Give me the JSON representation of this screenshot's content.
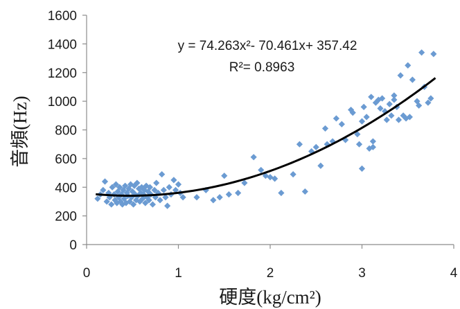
{
  "chart_data": {
    "type": "scatter",
    "xlabel": "硬度(kg/cm²)",
    "ylabel": "音頻(Hz)",
    "xlim": [
      0,
      4
    ],
    "ylim": [
      0,
      1600
    ],
    "x_ticks": [
      "0",
      "1",
      "2",
      "3",
      "4"
    ],
    "y_ticks": [
      "0",
      "200",
      "400",
      "600",
      "800",
      "1000",
      "1200",
      "1400",
      "1600"
    ],
    "grid": false,
    "legend": "none",
    "marker_color": "#6b9bd2",
    "trendline_color": "#000000",
    "annotations": {
      "equation": "y = 74.263x²- 70.461x+ 357.42",
      "r_squared": "R²= 0.8963"
    },
    "trendline": {
      "type": "polynomial",
      "coefficients": [
        74.263,
        -70.461,
        357.42
      ],
      "x_range": [
        0.1,
        3.8
      ]
    },
    "points": [
      [
        0.12,
        320
      ],
      [
        0.15,
        350
      ],
      [
        0.18,
        380
      ],
      [
        0.2,
        440
      ],
      [
        0.22,
        300
      ],
      [
        0.24,
        360
      ],
      [
        0.25,
        330
      ],
      [
        0.27,
        280
      ],
      [
        0.28,
        400
      ],
      [
        0.3,
        350
      ],
      [
        0.31,
        310
      ],
      [
        0.32,
        420
      ],
      [
        0.33,
        290
      ],
      [
        0.34,
        370
      ],
      [
        0.35,
        330
      ],
      [
        0.36,
        400
      ],
      [
        0.37,
        300
      ],
      [
        0.38,
        350
      ],
      [
        0.39,
        280
      ],
      [
        0.4,
        380
      ],
      [
        0.41,
        320
      ],
      [
        0.42,
        410
      ],
      [
        0.43,
        290
      ],
      [
        0.44,
        360
      ],
      [
        0.45,
        340
      ],
      [
        0.46,
        390
      ],
      [
        0.47,
        300
      ],
      [
        0.48,
        420
      ],
      [
        0.49,
        330
      ],
      [
        0.5,
        370
      ],
      [
        0.51,
        280
      ],
      [
        0.52,
        410
      ],
      [
        0.53,
        350
      ],
      [
        0.54,
        310
      ],
      [
        0.55,
        430
      ],
      [
        0.56,
        340
      ],
      [
        0.57,
        390
      ],
      [
        0.58,
        300
      ],
      [
        0.59,
        360
      ],
      [
        0.6,
        400
      ],
      [
        0.61,
        320
      ],
      [
        0.62,
        350
      ],
      [
        0.63,
        380
      ],
      [
        0.64,
        290
      ],
      [
        0.65,
        410
      ],
      [
        0.66,
        330
      ],
      [
        0.67,
        370
      ],
      [
        0.68,
        310
      ],
      [
        0.69,
        400
      ],
      [
        0.7,
        350
      ],
      [
        0.72,
        280
      ],
      [
        0.74,
        380
      ],
      [
        0.75,
        330
      ],
      [
        0.76,
        430
      ],
      [
        0.78,
        360
      ],
      [
        0.8,
        310
      ],
      [
        0.82,
        490
      ],
      [
        0.84,
        380
      ],
      [
        0.86,
        330
      ],
      [
        0.88,
        270
      ],
      [
        0.9,
        400
      ],
      [
        0.92,
        350
      ],
      [
        0.95,
        450
      ],
      [
        0.97,
        380
      ],
      [
        1.0,
        420
      ],
      [
        1.02,
        360
      ],
      [
        1.05,
        330
      ],
      [
        1.2,
        330
      ],
      [
        1.3,
        380
      ],
      [
        1.38,
        310
      ],
      [
        1.45,
        330
      ],
      [
        1.5,
        480
      ],
      [
        1.55,
        350
      ],
      [
        1.65,
        360
      ],
      [
        1.72,
        430
      ],
      [
        1.82,
        610
      ],
      [
        1.9,
        520
      ],
      [
        1.95,
        480
      ],
      [
        2.0,
        470
      ],
      [
        2.05,
        460
      ],
      [
        2.12,
        360
      ],
      [
        2.25,
        490
      ],
      [
        2.32,
        700
      ],
      [
        2.38,
        370
      ],
      [
        2.45,
        650
      ],
      [
        2.5,
        680
      ],
      [
        2.55,
        550
      ],
      [
        2.6,
        810
      ],
      [
        2.62,
        700
      ],
      [
        2.68,
        720
      ],
      [
        2.72,
        880
      ],
      [
        2.78,
        840
      ],
      [
        2.82,
        730
      ],
      [
        2.88,
        940
      ],
      [
        2.9,
        920
      ],
      [
        2.95,
        770
      ],
      [
        2.97,
        700
      ],
      [
        3.0,
        860
      ],
      [
        3.0,
        530
      ],
      [
        3.02,
        960
      ],
      [
        3.05,
        890
      ],
      [
        3.08,
        670
      ],
      [
        3.1,
        1030
      ],
      [
        3.12,
        720
      ],
      [
        3.15,
        990
      ],
      [
        3.18,
        1010
      ],
      [
        3.2,
        950
      ],
      [
        3.22,
        1020
      ],
      [
        3.25,
        930
      ],
      [
        3.27,
        870
      ],
      [
        3.3,
        980
      ],
      [
        3.32,
        900
      ],
      [
        3.35,
        1010
      ],
      [
        3.38,
        960
      ],
      [
        3.4,
        870
      ],
      [
        3.42,
        1180
      ],
      [
        3.45,
        900
      ],
      [
        3.48,
        880
      ],
      [
        3.5,
        1250
      ],
      [
        3.52,
        890
      ],
      [
        3.55,
        1150
      ],
      [
        3.6,
        1000
      ],
      [
        3.62,
        970
      ],
      [
        3.65,
        1340
      ],
      [
        3.68,
        1100
      ],
      [
        3.72,
        990
      ],
      [
        3.75,
        1020
      ],
      [
        3.78,
        1330
      ],
      [
        3.35,
        1040
      ],
      [
        3.12,
        680
      ]
    ]
  }
}
